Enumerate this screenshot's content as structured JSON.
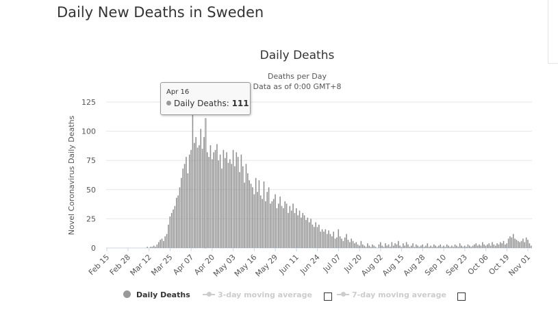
{
  "page_title": "Daily New Deaths in Sweden",
  "tooltip": {
    "date": "Apr 16",
    "series": "Daily Deaths",
    "value": "111"
  },
  "legend": {
    "items": [
      "Daily Deaths",
      "3-day moving average",
      "7-day moving average"
    ]
  },
  "chart_data": {
    "type": "bar",
    "title": "Daily Deaths",
    "subtitle": [
      "Deaths per Day",
      "Data as of 0:00 GMT+8"
    ],
    "ylabel": "Novel Coronavirus Daily Deaths",
    "xlabel": "",
    "ylim": [
      0,
      125
    ],
    "y_ticks": [
      "0",
      "25",
      "50",
      "75",
      "100",
      "125"
    ],
    "x_start": "Feb 15",
    "x_tick_interval_days": 13,
    "x_ticks": [
      "Feb 15",
      "Feb 28",
      "Mar 12",
      "Mar 25",
      "Apr 07",
      "Apr 20",
      "May 03",
      "May 16",
      "May 29",
      "Jun 11",
      "Jun 24",
      "Jul 07",
      "Jul 20",
      "Aug 02",
      "Aug 15",
      "Aug 28",
      "Sep 10",
      "Sep 23",
      "Oct 06",
      "Oct 19",
      "Nov 01"
    ],
    "grid": true,
    "legend_position": "bottom",
    "highlight_index": 61,
    "series": [
      {
        "name": "Daily Deaths",
        "color": "#909090",
        "values": [
          0,
          0,
          0,
          0,
          0,
          0,
          0,
          0,
          0,
          0,
          0,
          0,
          0,
          0,
          0,
          0,
          0,
          0,
          0,
          0,
          0,
          0,
          0,
          0,
          0,
          1,
          0,
          1,
          1,
          2,
          1,
          3,
          5,
          7,
          8,
          6,
          10,
          12,
          20,
          27,
          30,
          33,
          36,
          43,
          45,
          52,
          60,
          68,
          72,
          78,
          64,
          80,
          84,
          115,
          90,
          95,
          86,
          88,
          102,
          85,
          95,
          111,
          82,
          78,
          88,
          76,
          82,
          84,
          89,
          75,
          80,
          68,
          84,
          77,
          82,
          73,
          76,
          72,
          84,
          70,
          82,
          78,
          65,
          80,
          70,
          56,
          72,
          64,
          58,
          55,
          52,
          46,
          60,
          48,
          58,
          45,
          42,
          57,
          40,
          48,
          52,
          38,
          40,
          42,
          46,
          34,
          38,
          44,
          36,
          34,
          40,
          38,
          30,
          36,
          32,
          38,
          30,
          34,
          28,
          32,
          26,
          30,
          28,
          24,
          26,
          22,
          25,
          20,
          18,
          22,
          18,
          20,
          14,
          16,
          14,
          16,
          12,
          15,
          12,
          10,
          14,
          8,
          9,
          16,
          10,
          8,
          6,
          9,
          12,
          7,
          5,
          8,
          6,
          4,
          5,
          3,
          2,
          6,
          3,
          2,
          1,
          4,
          2,
          1,
          3,
          2,
          1,
          0,
          3,
          5,
          2,
          1,
          4,
          2,
          3,
          1,
          5,
          2,
          4,
          3,
          6,
          2,
          1,
          4,
          2,
          5,
          3,
          1,
          2,
          4,
          1,
          3,
          2,
          1,
          2,
          3,
          1,
          2,
          4,
          1,
          2,
          1,
          3,
          2,
          1,
          2,
          3,
          1,
          2,
          1,
          3,
          2,
          1,
          2,
          1,
          3,
          2,
          1,
          4,
          2,
          1,
          2,
          1,
          3,
          2,
          1,
          2,
          3,
          4,
          2,
          3,
          2,
          5,
          3,
          2,
          3,
          4,
          2,
          5,
          3,
          2,
          4,
          3,
          5,
          4,
          6,
          3,
          4,
          8,
          10,
          9,
          12,
          8,
          7,
          6,
          5,
          6,
          8,
          5,
          9,
          7,
          4,
          2
        ]
      }
    ]
  }
}
